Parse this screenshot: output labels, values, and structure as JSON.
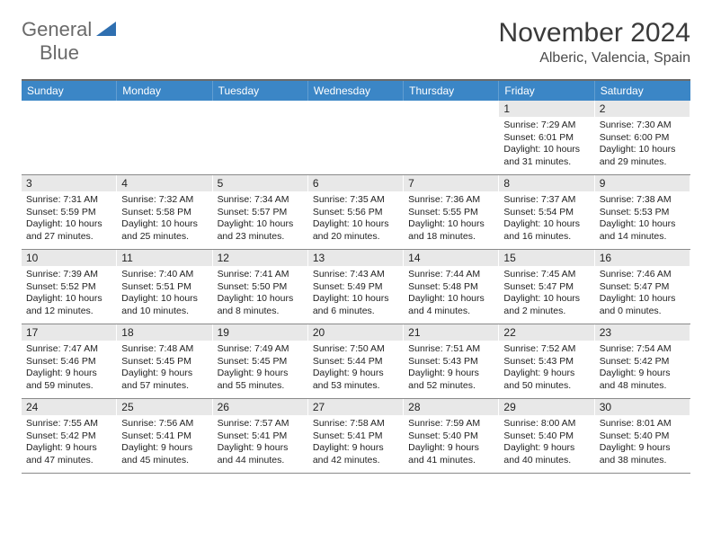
{
  "logo": {
    "line1": "General",
    "line2": "Blue"
  },
  "title": "November 2024",
  "location": "Alberic, Valencia, Spain",
  "colors": {
    "header_band": "#3b86c6",
    "day_band": "#e8e8e8",
    "rule": "#6a6a6a",
    "logo_gray": "#6a6a6a",
    "logo_blue": "#2f6fb0",
    "text": "#222222"
  },
  "typography": {
    "title_fontsize": 30,
    "location_fontsize": 16,
    "dow_fontsize": 12,
    "daynum_fontsize": 12,
    "info_fontsize": 10.5
  },
  "days_of_week": [
    "Sunday",
    "Monday",
    "Tuesday",
    "Wednesday",
    "Thursday",
    "Friday",
    "Saturday"
  ],
  "weeks": [
    [
      null,
      null,
      null,
      null,
      null,
      {
        "n": 1,
        "sr": "7:29 AM",
        "ss": "6:01 PM",
        "dl": "10 hours and 31 minutes."
      },
      {
        "n": 2,
        "sr": "7:30 AM",
        "ss": "6:00 PM",
        "dl": "10 hours and 29 minutes."
      }
    ],
    [
      {
        "n": 3,
        "sr": "7:31 AM",
        "ss": "5:59 PM",
        "dl": "10 hours and 27 minutes."
      },
      {
        "n": 4,
        "sr": "7:32 AM",
        "ss": "5:58 PM",
        "dl": "10 hours and 25 minutes."
      },
      {
        "n": 5,
        "sr": "7:34 AM",
        "ss": "5:57 PM",
        "dl": "10 hours and 23 minutes."
      },
      {
        "n": 6,
        "sr": "7:35 AM",
        "ss": "5:56 PM",
        "dl": "10 hours and 20 minutes."
      },
      {
        "n": 7,
        "sr": "7:36 AM",
        "ss": "5:55 PM",
        "dl": "10 hours and 18 minutes."
      },
      {
        "n": 8,
        "sr": "7:37 AM",
        "ss": "5:54 PM",
        "dl": "10 hours and 16 minutes."
      },
      {
        "n": 9,
        "sr": "7:38 AM",
        "ss": "5:53 PM",
        "dl": "10 hours and 14 minutes."
      }
    ],
    [
      {
        "n": 10,
        "sr": "7:39 AM",
        "ss": "5:52 PM",
        "dl": "10 hours and 12 minutes."
      },
      {
        "n": 11,
        "sr": "7:40 AM",
        "ss": "5:51 PM",
        "dl": "10 hours and 10 minutes."
      },
      {
        "n": 12,
        "sr": "7:41 AM",
        "ss": "5:50 PM",
        "dl": "10 hours and 8 minutes."
      },
      {
        "n": 13,
        "sr": "7:43 AM",
        "ss": "5:49 PM",
        "dl": "10 hours and 6 minutes."
      },
      {
        "n": 14,
        "sr": "7:44 AM",
        "ss": "5:48 PM",
        "dl": "10 hours and 4 minutes."
      },
      {
        "n": 15,
        "sr": "7:45 AM",
        "ss": "5:47 PM",
        "dl": "10 hours and 2 minutes."
      },
      {
        "n": 16,
        "sr": "7:46 AM",
        "ss": "5:47 PM",
        "dl": "10 hours and 0 minutes."
      }
    ],
    [
      {
        "n": 17,
        "sr": "7:47 AM",
        "ss": "5:46 PM",
        "dl": "9 hours and 59 minutes."
      },
      {
        "n": 18,
        "sr": "7:48 AM",
        "ss": "5:45 PM",
        "dl": "9 hours and 57 minutes."
      },
      {
        "n": 19,
        "sr": "7:49 AM",
        "ss": "5:45 PM",
        "dl": "9 hours and 55 minutes."
      },
      {
        "n": 20,
        "sr": "7:50 AM",
        "ss": "5:44 PM",
        "dl": "9 hours and 53 minutes."
      },
      {
        "n": 21,
        "sr": "7:51 AM",
        "ss": "5:43 PM",
        "dl": "9 hours and 52 minutes."
      },
      {
        "n": 22,
        "sr": "7:52 AM",
        "ss": "5:43 PM",
        "dl": "9 hours and 50 minutes."
      },
      {
        "n": 23,
        "sr": "7:54 AM",
        "ss": "5:42 PM",
        "dl": "9 hours and 48 minutes."
      }
    ],
    [
      {
        "n": 24,
        "sr": "7:55 AM",
        "ss": "5:42 PM",
        "dl": "9 hours and 47 minutes."
      },
      {
        "n": 25,
        "sr": "7:56 AM",
        "ss": "5:41 PM",
        "dl": "9 hours and 45 minutes."
      },
      {
        "n": 26,
        "sr": "7:57 AM",
        "ss": "5:41 PM",
        "dl": "9 hours and 44 minutes."
      },
      {
        "n": 27,
        "sr": "7:58 AM",
        "ss": "5:41 PM",
        "dl": "9 hours and 42 minutes."
      },
      {
        "n": 28,
        "sr": "7:59 AM",
        "ss": "5:40 PM",
        "dl": "9 hours and 41 minutes."
      },
      {
        "n": 29,
        "sr": "8:00 AM",
        "ss": "5:40 PM",
        "dl": "9 hours and 40 minutes."
      },
      {
        "n": 30,
        "sr": "8:01 AM",
        "ss": "5:40 PM",
        "dl": "9 hours and 38 minutes."
      }
    ]
  ],
  "labels": {
    "sunrise": "Sunrise:",
    "sunset": "Sunset:",
    "daylight": "Daylight:"
  }
}
